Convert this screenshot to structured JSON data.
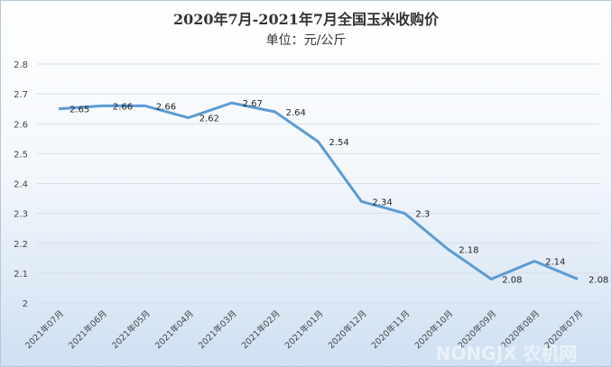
{
  "chart_data": {
    "type": "line",
    "title": "2020年7月-2021年7月全国玉米收购价",
    "subtitle": "单位：元/公斤",
    "categories": [
      "2021年07月",
      "2021年06月",
      "2021年05月",
      "2021年04月",
      "2021年03月",
      "2021年02月",
      "2021年01月",
      "2020年12月",
      "2020年11月",
      "2020年10月",
      "2020年09月",
      "2020年08月",
      "2020年07月"
    ],
    "values": [
      2.65,
      2.66,
      2.66,
      2.62,
      2.67,
      2.64,
      2.54,
      2.34,
      2.3,
      2.18,
      2.08,
      2.14,
      2.08
    ],
    "ylim": [
      2,
      2.8
    ],
    "yticks": [
      "2",
      "2.1",
      "2.2",
      "2.3",
      "2.4",
      "2.5",
      "2.6",
      "2.7",
      "2.8"
    ],
    "grid": true,
    "legend": "none",
    "line_color": "#5b9bd5",
    "watermark": "NONGJX 农机网"
  }
}
